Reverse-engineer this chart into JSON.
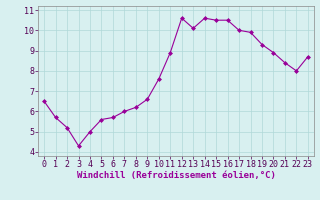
{
  "x": [
    0,
    1,
    2,
    3,
    4,
    5,
    6,
    7,
    8,
    9,
    10,
    11,
    12,
    13,
    14,
    15,
    16,
    17,
    18,
    19,
    20,
    21,
    22,
    23
  ],
  "y": [
    6.5,
    5.7,
    5.2,
    4.3,
    5.0,
    5.6,
    5.7,
    6.0,
    6.2,
    6.6,
    7.6,
    8.9,
    10.6,
    10.1,
    10.6,
    10.5,
    10.5,
    10.0,
    9.9,
    9.3,
    8.9,
    8.4,
    8.0,
    8.7
  ],
  "line_color": "#990099",
  "marker": "D",
  "marker_size": 2,
  "bg_color": "#d8f0f0",
  "xlabel": "Windchill (Refroidissement éolien,°C)",
  "xlabel_fontsize": 6.5,
  "xlim": [
    -0.5,
    23.5
  ],
  "ylim": [
    3.8,
    11.2
  ],
  "yticks": [
    4,
    5,
    6,
    7,
    8,
    9,
    10,
    11
  ],
  "xticks": [
    0,
    1,
    2,
    3,
    4,
    5,
    6,
    7,
    8,
    9,
    10,
    11,
    12,
    13,
    14,
    15,
    16,
    17,
    18,
    19,
    20,
    21,
    22,
    23
  ],
  "grid_color": "#b0d8d8",
  "tick_labelsize": 6,
  "line_width": 0.8
}
